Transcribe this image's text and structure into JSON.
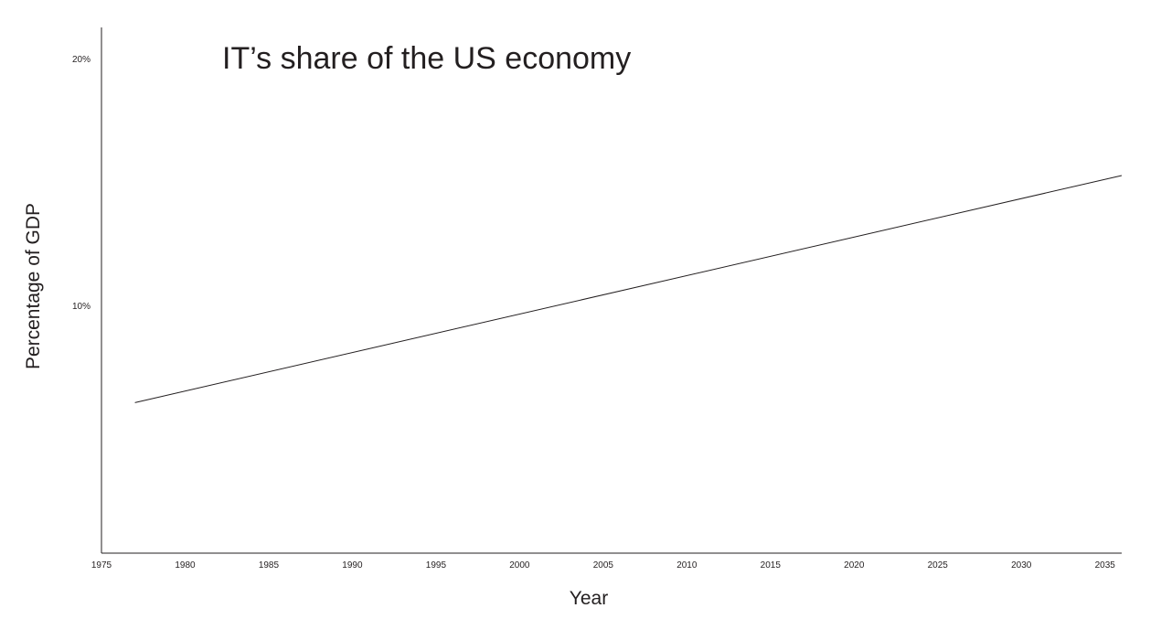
{
  "chart_data": {
    "type": "line",
    "title": "IT’s share of the US economy",
    "xlabel": "Year",
    "ylabel": "Percentage of GDP",
    "xlim": [
      1975,
      2036
    ],
    "ylim": [
      0,
      21.3
    ],
    "x_ticks": [
      1975,
      1980,
      1985,
      1990,
      1995,
      2000,
      2005,
      2010,
      2015,
      2020,
      2025,
      2030,
      2035
    ],
    "y_ticks": [
      {
        "value": 10,
        "label": "10%"
      },
      {
        "value": 20,
        "label": "20%"
      }
    ],
    "grid": false,
    "legend": "none",
    "series": [
      {
        "color": "#231f20",
        "x": [
          1977,
          2036
        ],
        "values": [
          6.1,
          15.3
        ]
      }
    ]
  }
}
